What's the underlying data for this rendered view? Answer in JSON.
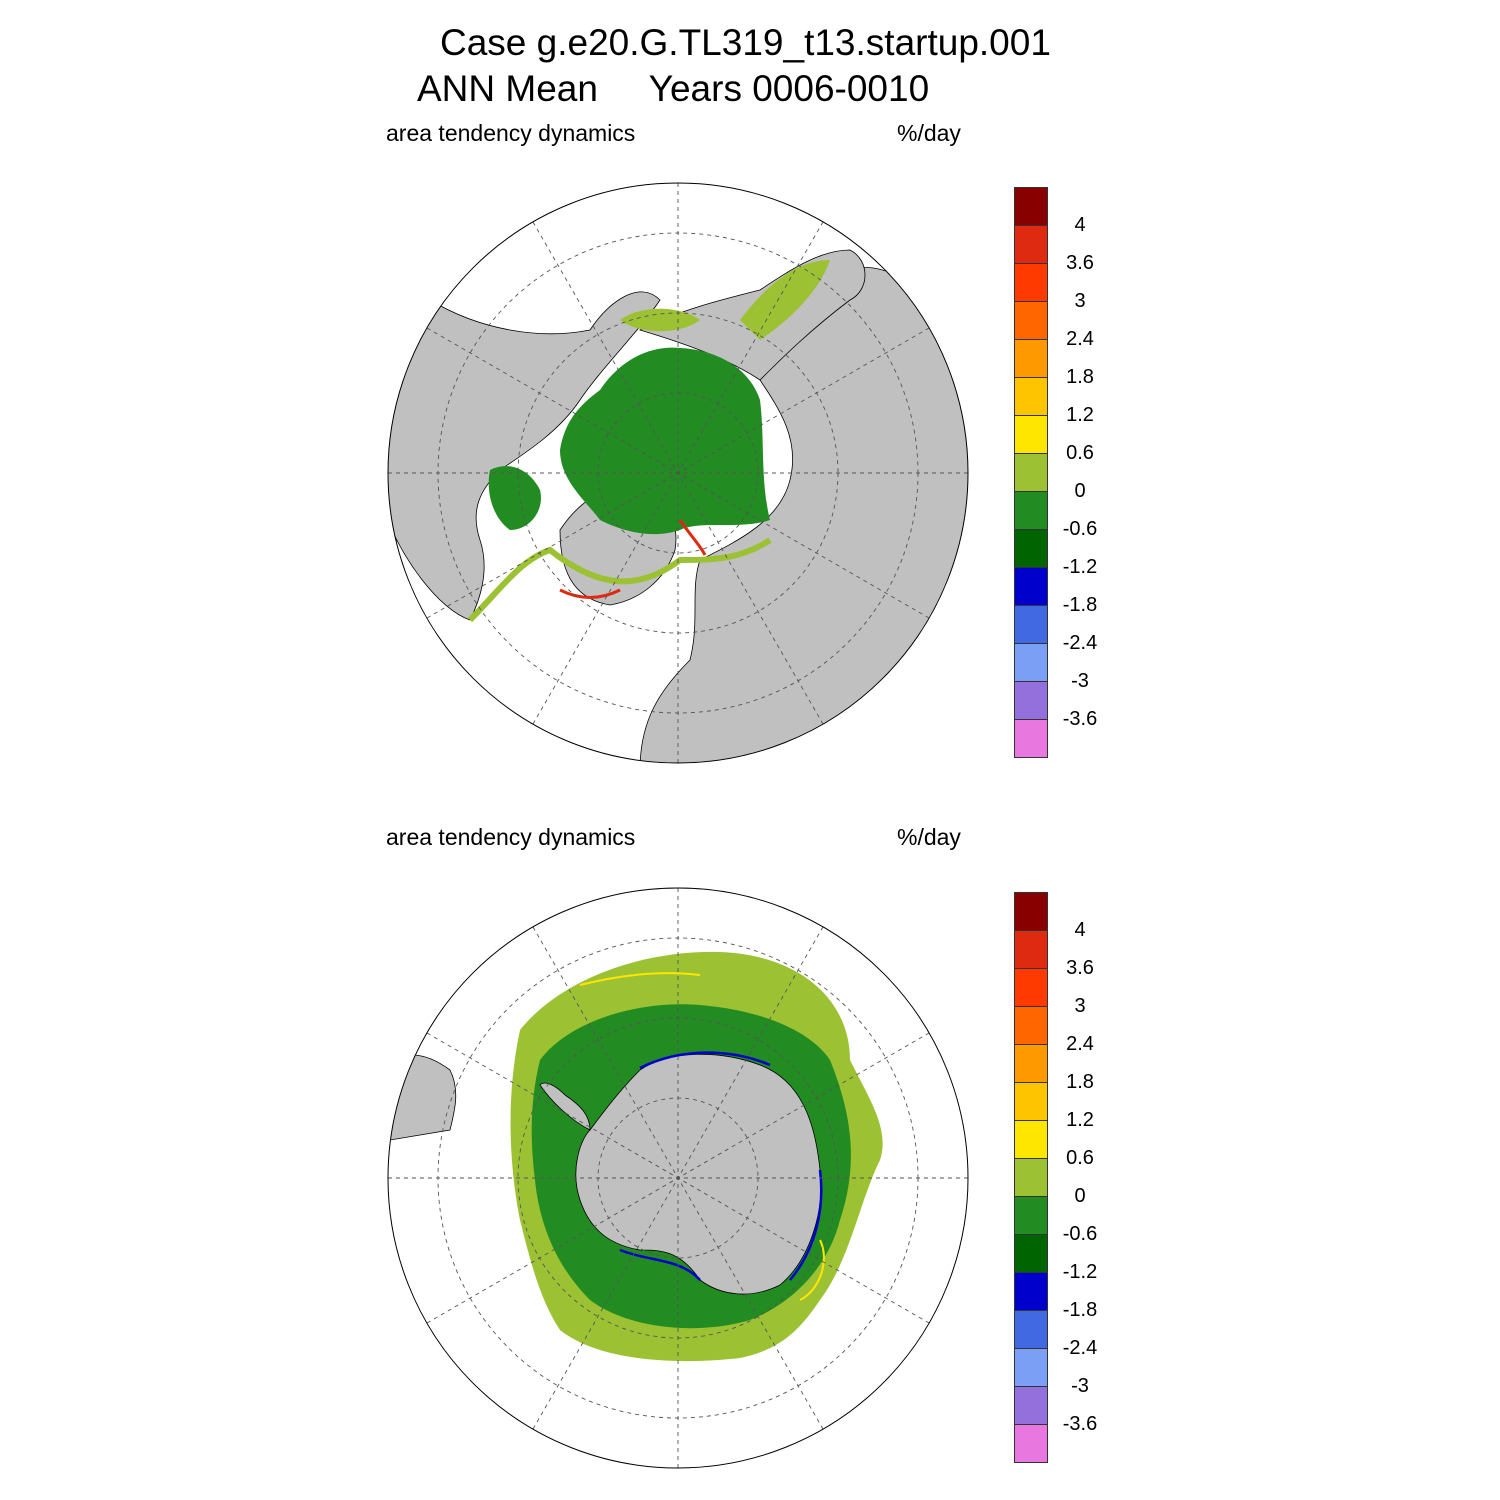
{
  "title": {
    "line1": "Case g.e20.G.TL319_t13.startup.001",
    "line2": "ANN Mean     Years 0006-0010"
  },
  "panels": [
    {
      "id": "north",
      "left_label": "area tendency dynamics",
      "right_label": "%/day"
    },
    {
      "id": "south",
      "left_label": "area tendency dynamics",
      "right_label": "%/day"
    }
  ],
  "colorbar": {
    "colors": [
      "#880000",
      "#dd2a10",
      "#ff3a00",
      "#ff6600",
      "#ff9900",
      "#ffc400",
      "#ffe600",
      "#9cc234",
      "#228b22",
      "#006400",
      "#0000cd",
      "#4169e1",
      "#7b9ff5",
      "#9370db",
      "#e878e0"
    ],
    "labels": [
      "4",
      "3.6",
      "3",
      "2.4",
      "1.8",
      "1.2",
      "0.6",
      "0",
      "-0.6",
      "-1.2",
      "-1.8",
      "-2.4",
      "-3",
      "-3.6"
    ]
  },
  "colors": {
    "land": "#c0c0c0",
    "ocean": "#ffffff",
    "ice_main": "#228b22",
    "ice_edge": "#9cc234"
  }
}
